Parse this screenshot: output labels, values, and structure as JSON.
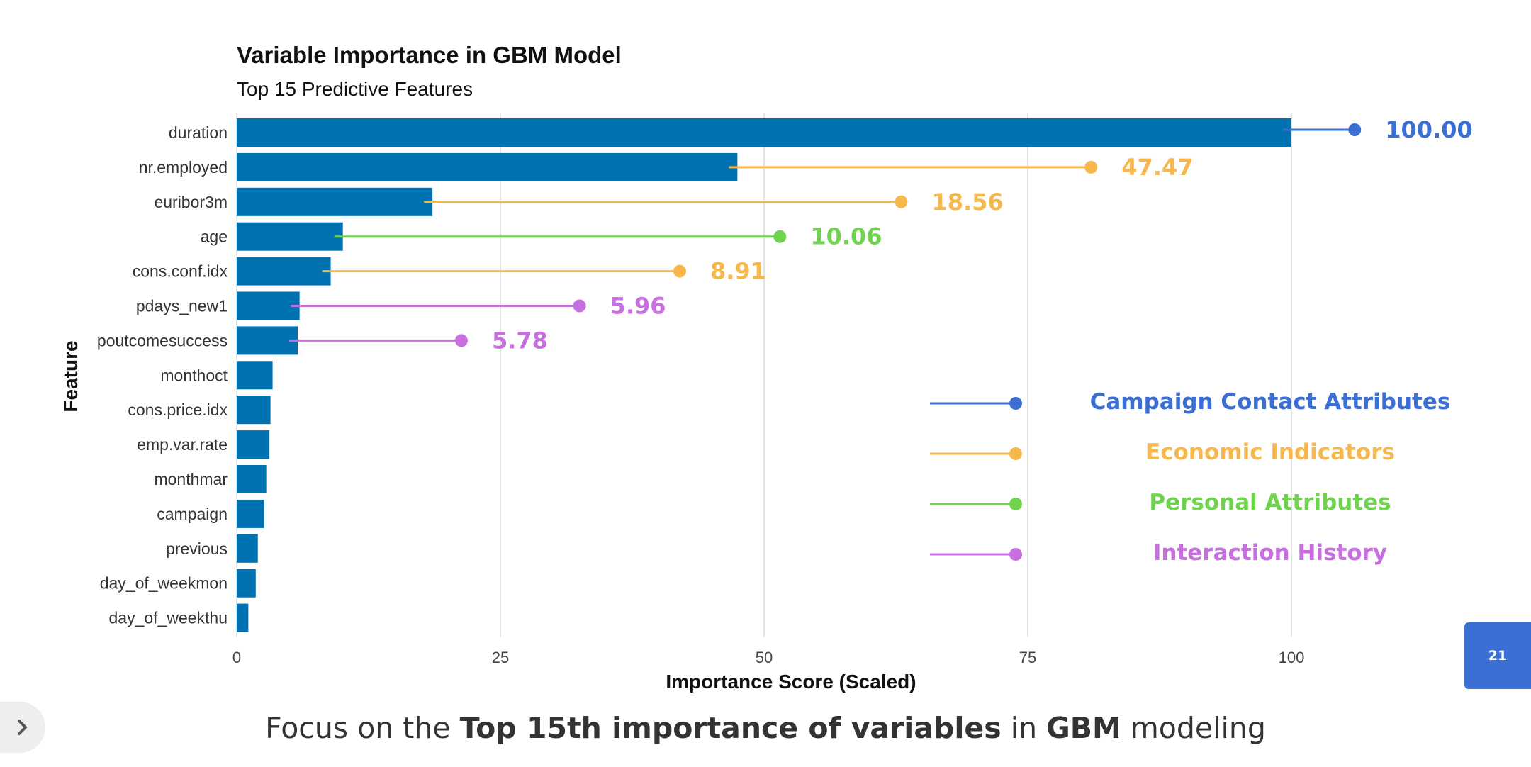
{
  "chart_data": {
    "type": "bar",
    "orientation": "horizontal",
    "title": "Variable Importance in GBM Model",
    "subtitle": "Top 15 Predictive Features",
    "xlabel": "Importance Score (Scaled)",
    "ylabel": "Feature",
    "xlim": [
      0,
      100
    ],
    "xticks": [
      0,
      25,
      50,
      75,
      100
    ],
    "xtick_labels": [
      "0",
      "25",
      "50",
      "75",
      "100"
    ],
    "grid": "vertical",
    "bar_color": "#0072b2",
    "categories": [
      "duration",
      "nr.employed",
      "euribor3m",
      "age",
      "cons.conf.idx",
      "pdays_new1",
      "poutcomesuccess",
      "monthoct",
      "cons.price.idx",
      "emp.var.rate",
      "monthmar",
      "campaign",
      "previous",
      "day_of_weekmon",
      "day_of_weekthu"
    ],
    "values": [
      100,
      47.47,
      18.56,
      10.06,
      8.91,
      5.96,
      5.78,
      3.4,
      3.2,
      3.1,
      2.8,
      2.6,
      2.0,
      1.8,
      1.1
    ],
    "annotations": [
      {
        "feature": "duration",
        "label": "100.00",
        "group": "Campaign Contact Attributes",
        "dot_at": 106
      },
      {
        "feature": "nr.employed",
        "label": "47.47",
        "group": "Economic Indicators",
        "dot_at": 81
      },
      {
        "feature": "euribor3m",
        "label": "18.56",
        "group": "Economic Indicators",
        "dot_at": 63
      },
      {
        "feature": "age",
        "label": "10.06",
        "group": "Personal Attributes",
        "dot_at": 51.5
      },
      {
        "feature": "cons.conf.idx",
        "label": "8.91",
        "group": "Economic Indicators",
        "dot_at": 42
      },
      {
        "feature": "pdays_new1",
        "label": "5.96",
        "group": "Interaction History",
        "dot_at": 32.5
      },
      {
        "feature": "poutcomesuccess",
        "label": "5.78",
        "group": "Interaction History",
        "dot_at": 21.3
      }
    ],
    "legend": {
      "placement": "bottom-right",
      "items": [
        {
          "label": "Campaign Contact Attributes",
          "color": "#3b6fd4"
        },
        {
          "label": "Economic Indicators",
          "color": "#f6b74d"
        },
        {
          "label": "Personal Attributes",
          "color": "#6fd34d"
        },
        {
          "label": "Interaction History",
          "color": "#c86fe0"
        }
      ]
    }
  },
  "caption": {
    "prefix": "Focus on the ",
    "bold1": "Top 15th importance of variables",
    "middle": " in ",
    "bold2": "GBM",
    "suffix": " modeling"
  },
  "page_number": "21",
  "nav_icon": "chevron-right-icon"
}
